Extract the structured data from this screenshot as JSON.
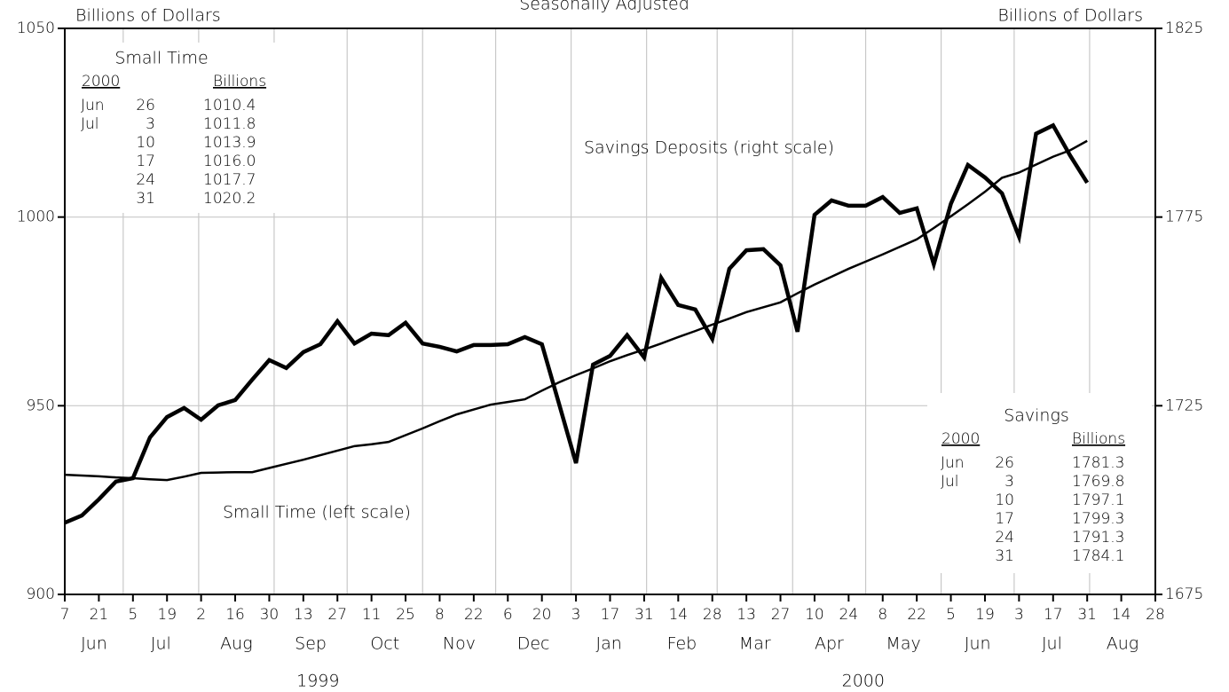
{
  "chart_data": {
    "type": "line",
    "title": "Seasonally Adjusted",
    "ylabel": "Billions of Dollars",
    "y2label": "Billions of Dollars",
    "x": [
      "1999-06-07",
      "1999-06-14",
      "1999-06-21",
      "1999-06-28",
      "1999-07-05",
      "1999-07-12",
      "1999-07-19",
      "1999-07-26",
      "1999-08-02",
      "1999-08-09",
      "1999-08-16",
      "1999-08-23",
      "1999-08-30",
      "1999-09-06",
      "1999-09-13",
      "1999-09-20",
      "1999-09-27",
      "1999-10-04",
      "1999-10-11",
      "1999-10-18",
      "1999-10-25",
      "1999-11-01",
      "1999-11-08",
      "1999-11-15",
      "1999-11-22",
      "1999-11-29",
      "1999-12-06",
      "1999-12-13",
      "1999-12-20",
      "1999-12-27",
      "2000-01-03",
      "2000-01-10",
      "2000-01-17",
      "2000-01-24",
      "2000-01-31",
      "2000-02-07",
      "2000-02-14",
      "2000-02-21",
      "2000-02-28",
      "2000-03-06",
      "2000-03-13",
      "2000-03-20",
      "2000-03-27",
      "2000-04-03",
      "2000-04-10",
      "2000-04-17",
      "2000-04-24",
      "2000-05-01",
      "2000-05-08",
      "2000-05-15",
      "2000-05-22",
      "2000-05-29",
      "2000-06-05",
      "2000-06-12",
      "2000-06-19",
      "2000-06-26",
      "2000-07-03",
      "2000-07-10",
      "2000-07-17",
      "2000-07-24",
      "2000-07-31"
    ],
    "series": [
      {
        "name": "Savings Deposits (right scale)",
        "color": "#000000",
        "axis": "y2",
        "line_width": 4.5,
        "values": [
          1694.0,
          1695.9,
          1700.2,
          1704.9,
          1705.8,
          1716.6,
          1722.0,
          1724.4,
          1721.3,
          1725.1,
          1726.5,
          1731.9,
          1737.1,
          1735.0,
          1739.2,
          1741.3,
          1747.4,
          1741.5,
          1744.1,
          1743.7,
          1747.0,
          1741.5,
          1740.6,
          1739.4,
          1741.1,
          1741.1,
          1741.3,
          1743.2,
          1741.3,
          1725.6,
          1709.8,
          1735.9,
          1738.2,
          1743.7,
          1737.8,
          1758.9,
          1751.7,
          1750.5,
          1742.7,
          1761.3,
          1766.2,
          1766.5,
          1762.2,
          1744.6,
          1775.6,
          1779.4,
          1778.0,
          1778.0,
          1780.3,
          1776.1,
          1777.3,
          1762.5,
          1778.5,
          1788.8,
          1785.5,
          1781.3,
          1769.8,
          1797.1,
          1799.3,
          1791.3,
          1784.1
        ]
      },
      {
        "name": "Small Time (left scale)",
        "color": "#000000",
        "axis": "y",
        "line_width": 2.5,
        "values": [
          931.7,
          931.5,
          931.3,
          931.0,
          930.8,
          930.5,
          930.3,
          931.2,
          932.2,
          932.3,
          932.4,
          932.4,
          933.5,
          934.6,
          935.7,
          936.9,
          938.1,
          939.3,
          939.8,
          940.4,
          942.2,
          944.0,
          945.9,
          947.7,
          949.0,
          950.3,
          951.0,
          951.7,
          954.0,
          956.2,
          958.1,
          959.9,
          961.8,
          963.4,
          964.9,
          966.5,
          968.2,
          969.8,
          971.5,
          973.1,
          974.8,
          976.1,
          977.4,
          979.8,
          982.1,
          984.2,
          986.3,
          988.2,
          990.1,
          992.1,
          994.1,
          997.1,
          1000.2,
          1003.4,
          1006.7,
          1010.4,
          1011.8,
          1013.9,
          1016.0,
          1017.7,
          1020.2
        ]
      }
    ],
    "xlim": [
      "1999-06-07",
      "2000-08-28"
    ],
    "xticks": [
      {
        "value": "1999-06-07",
        "label": "7"
      },
      {
        "value": "1999-06-21",
        "label": "21"
      },
      {
        "value": "1999-07-05",
        "label": "5"
      },
      {
        "value": "1999-07-19",
        "label": "19"
      },
      {
        "value": "1999-08-02",
        "label": "2"
      },
      {
        "value": "1999-08-16",
        "label": "16"
      },
      {
        "value": "1999-08-30",
        "label": "30"
      },
      {
        "value": "1999-09-13",
        "label": "13"
      },
      {
        "value": "1999-09-27",
        "label": "27"
      },
      {
        "value": "1999-10-11",
        "label": "11"
      },
      {
        "value": "1999-10-25",
        "label": "25"
      },
      {
        "value": "1999-11-08",
        "label": "8"
      },
      {
        "value": "1999-11-22",
        "label": "22"
      },
      {
        "value": "1999-12-06",
        "label": "6"
      },
      {
        "value": "1999-12-20",
        "label": "20"
      },
      {
        "value": "2000-01-03",
        "label": "3"
      },
      {
        "value": "2000-01-17",
        "label": "17"
      },
      {
        "value": "2000-01-31",
        "label": "31"
      },
      {
        "value": "2000-02-14",
        "label": "14"
      },
      {
        "value": "2000-02-28",
        "label": "28"
      },
      {
        "value": "2000-03-13",
        "label": "13"
      },
      {
        "value": "2000-03-27",
        "label": "27"
      },
      {
        "value": "2000-04-10",
        "label": "10"
      },
      {
        "value": "2000-04-24",
        "label": "24"
      },
      {
        "value": "2000-05-08",
        "label": "8"
      },
      {
        "value": "2000-05-22",
        "label": "22"
      },
      {
        "value": "2000-06-05",
        "label": "5"
      },
      {
        "value": "2000-06-19",
        "label": "19"
      },
      {
        "value": "2000-07-03",
        "label": "3"
      },
      {
        "value": "2000-07-17",
        "label": "17"
      },
      {
        "value": "2000-07-31",
        "label": "31"
      },
      {
        "value": "2000-08-14",
        "label": "14"
      },
      {
        "value": "2000-08-28",
        "label": "28"
      }
    ],
    "months": [
      {
        "value": "1999-06",
        "label": "Jun"
      },
      {
        "value": "1999-07",
        "label": "Jul"
      },
      {
        "value": "1999-08",
        "label": "Aug"
      },
      {
        "value": "1999-09",
        "label": "Sep"
      },
      {
        "value": "1999-10",
        "label": "Oct"
      },
      {
        "value": "1999-11",
        "label": "Nov"
      },
      {
        "value": "1999-12",
        "label": "Dec"
      },
      {
        "value": "2000-01",
        "label": "Jan"
      },
      {
        "value": "2000-02",
        "label": "Feb"
      },
      {
        "value": "2000-03",
        "label": "Mar"
      },
      {
        "value": "2000-04",
        "label": "Apr"
      },
      {
        "value": "2000-05",
        "label": "May"
      },
      {
        "value": "2000-06",
        "label": "Jun"
      },
      {
        "value": "2000-07",
        "label": "Jul"
      },
      {
        "value": "2000-08",
        "label": "Aug"
      }
    ],
    "years": [
      "1999",
      "2000"
    ],
    "ylim": [
      900,
      1050
    ],
    "yticks": [
      900,
      950,
      1000,
      1050
    ],
    "y2lim": [
      1675,
      1825
    ],
    "y2ticks": [
      1675,
      1725,
      1775,
      1825
    ],
    "grid": true,
    "insets": [
      {
        "title": "Small Time",
        "headers": [
          "2000",
          "Billions"
        ],
        "rows": [
          [
            "Jun",
            "26",
            "1010.4"
          ],
          [
            "Jul",
            "3",
            "1011.8"
          ],
          [
            null,
            "10",
            "1013.9"
          ],
          [
            null,
            "17",
            "1016.0"
          ],
          [
            null,
            "24",
            "1017.7"
          ],
          [
            null,
            "31",
            "1020.2"
          ]
        ]
      },
      {
        "title": "Savings",
        "headers": [
          "2000",
          "Billions"
        ],
        "rows": [
          [
            "Jun",
            "26",
            "1781.3"
          ],
          [
            "Jul",
            "3",
            "1769.8"
          ],
          [
            null,
            "10",
            "1797.1"
          ],
          [
            null,
            "17",
            "1799.3"
          ],
          [
            null,
            "24",
            "1791.3"
          ],
          [
            null,
            "31",
            "1784.1"
          ]
        ]
      }
    ]
  }
}
